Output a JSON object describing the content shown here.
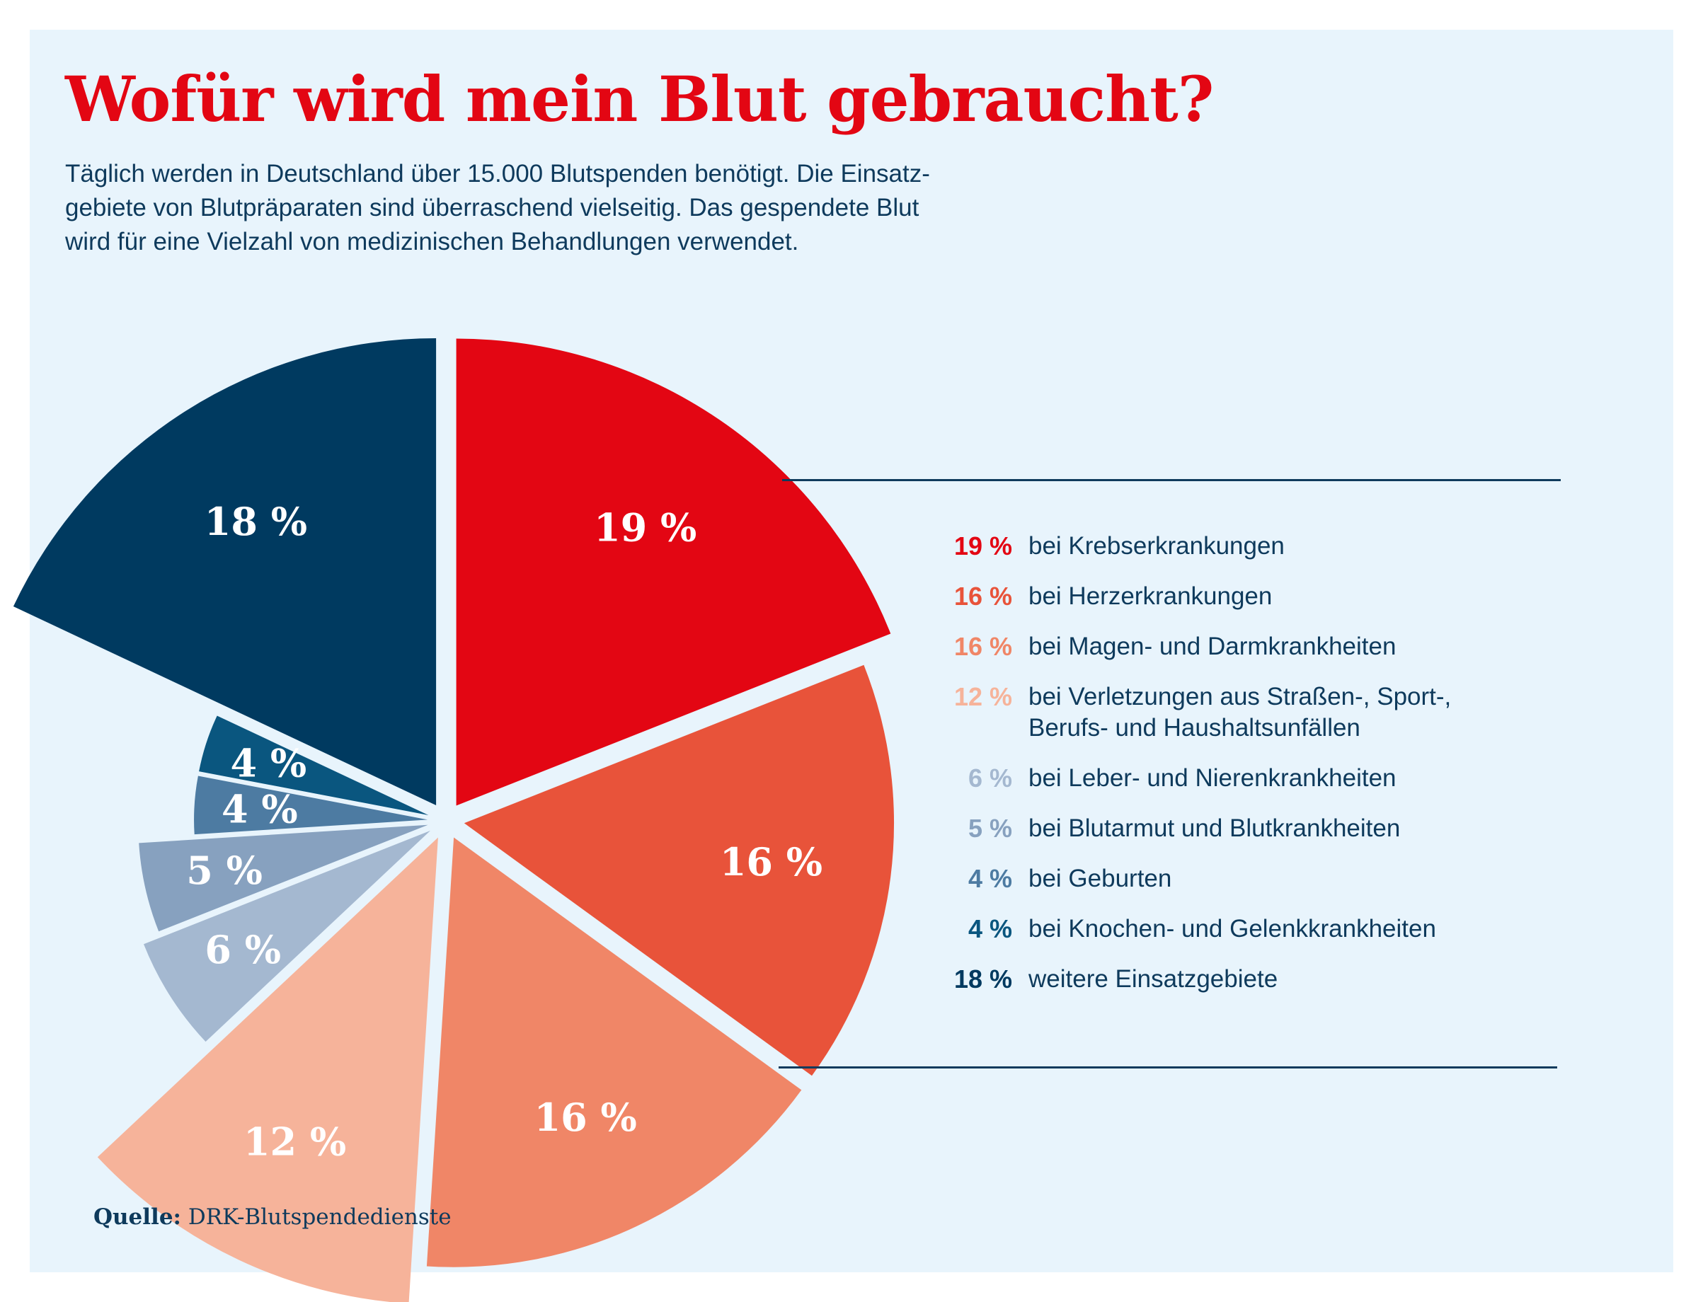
{
  "title": "Wofür wird mein Blut gebraucht?",
  "intro_lines": [
    "Täglich werden in Deutschland über 15.000 Blutspenden benötigt. Die Einsatz-",
    "gebiete von Blutpräparaten sind überraschend vielseitig. Das gespendete Blut",
    "wird für eine Vielzahl von medizinischen Behandlungen verwendet."
  ],
  "source": {
    "label": "Quelle:",
    "text": "DRK-Blutspendedienste"
  },
  "chart_data": {
    "type": "pie",
    "unit": "%",
    "start": "12 o'clock, clockwise",
    "slices": [
      {
        "value": 19,
        "label": "19 %",
        "legend_pct": "19 %",
        "legend_lines": [
          "bei Krebserkrankungen"
        ],
        "color": "#e30613",
        "radius": 1.0
      },
      {
        "value": 16,
        "label": "16 %",
        "legend_pct": "16 %",
        "legend_lines": [
          "bei Herzerkrankungen"
        ],
        "color": "#e8533a",
        "radius": 0.92
      },
      {
        "value": 16,
        "label": "16 %",
        "legend_pct": "16 %",
        "legend_lines": [
          "bei Magen- und Darmkrankheiten"
        ],
        "color": "#f08667",
        "radius": 0.92
      },
      {
        "value": 12,
        "label": "12 %",
        "legend_pct": "12 %",
        "legend_lines": [
          "bei Verletzungen aus Straßen-, Sport-,",
          "Berufs- und Haushaltsunfällen"
        ],
        "color": "#f6b39a",
        "radius": 1.0
      },
      {
        "value": 6,
        "label": "6 %",
        "legend_pct": "6 %",
        "legend_lines": [
          "bei Leber- und Nierenkrankheiten"
        ],
        "color": "#a4b8d0",
        "radius": 0.66
      },
      {
        "value": 5,
        "label": "5 %",
        "legend_pct": "5 %",
        "legend_lines": [
          "bei Blutarmut und Blutkrankheiten"
        ],
        "color": "#87a1bf",
        "radius": 0.62
      },
      {
        "value": 4,
        "label": "4 %",
        "legend_pct": "4 %",
        "legend_lines": [
          "bei Geburten"
        ],
        "color": "#4d7ba2",
        "radius": 0.5
      },
      {
        "value": 4,
        "label": "4 %",
        "legend_pct": "4 %",
        "legend_lines": [
          "bei Knochen- und Gelenkkrankheiten"
        ],
        "color": "#0a567f",
        "radius": 0.5
      },
      {
        "value": 18,
        "label": "18 %",
        "legend_pct": "18 %",
        "legend_lines": [
          "weitere Einsatzgebiete"
        ],
        "color": "#003a60",
        "radius": 1.0
      }
    ]
  }
}
